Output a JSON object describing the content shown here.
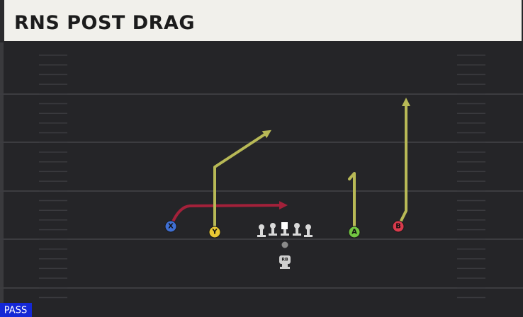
{
  "header": {
    "title": "RNS POST DRAG"
  },
  "players": [
    {
      "label": "X"
    },
    {
      "label": "Y"
    },
    {
      "label": "A"
    },
    {
      "label": "B"
    },
    {
      "label": "RB"
    }
  ],
  "badge": "PASS"
}
